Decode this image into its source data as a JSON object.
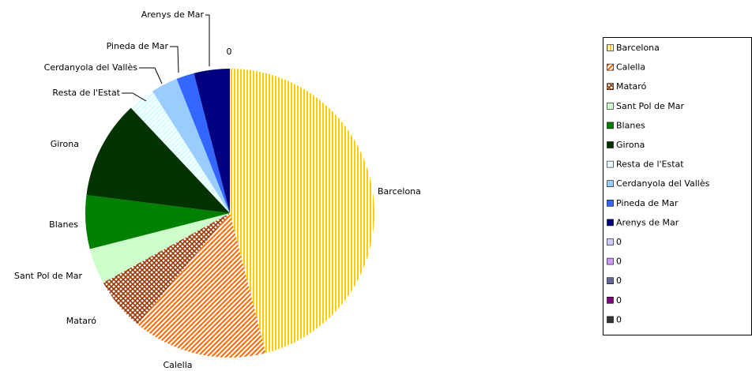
{
  "chart_data": {
    "type": "pie",
    "categories": [
      "Barcelona",
      "Calella",
      "Mataró",
      "Sant Pol de Mar",
      "Blanes",
      "Girona",
      "Resta de l'Estat",
      "Cerdanyola del Vallès",
      "Pineda de Mar",
      "Arenys de Mar",
      "0",
      "0",
      "0",
      "0",
      "0"
    ],
    "values": [
      46,
      15,
      6,
      4,
      6,
      11,
      3,
      3,
      2,
      4,
      0,
      0,
      0,
      0,
      0
    ],
    "colors": [
      "#ffcc00",
      "#ff6600",
      "#993300",
      "#ccffcc",
      "#008000",
      "#003300",
      "#ccffff",
      "#99ccff",
      "#3366ff",
      "#000080",
      "#ccccff",
      "#cc99ff",
      "#666699",
      "#800080",
      "#333333"
    ],
    "patterns": [
      "vertical",
      "diagonal",
      "cross",
      "solid",
      "solid",
      "solid",
      "diagonal",
      "solid",
      "solid",
      "solid",
      "solid",
      "solid",
      "solid",
      "solid",
      "solid"
    ],
    "legend": "right"
  }
}
